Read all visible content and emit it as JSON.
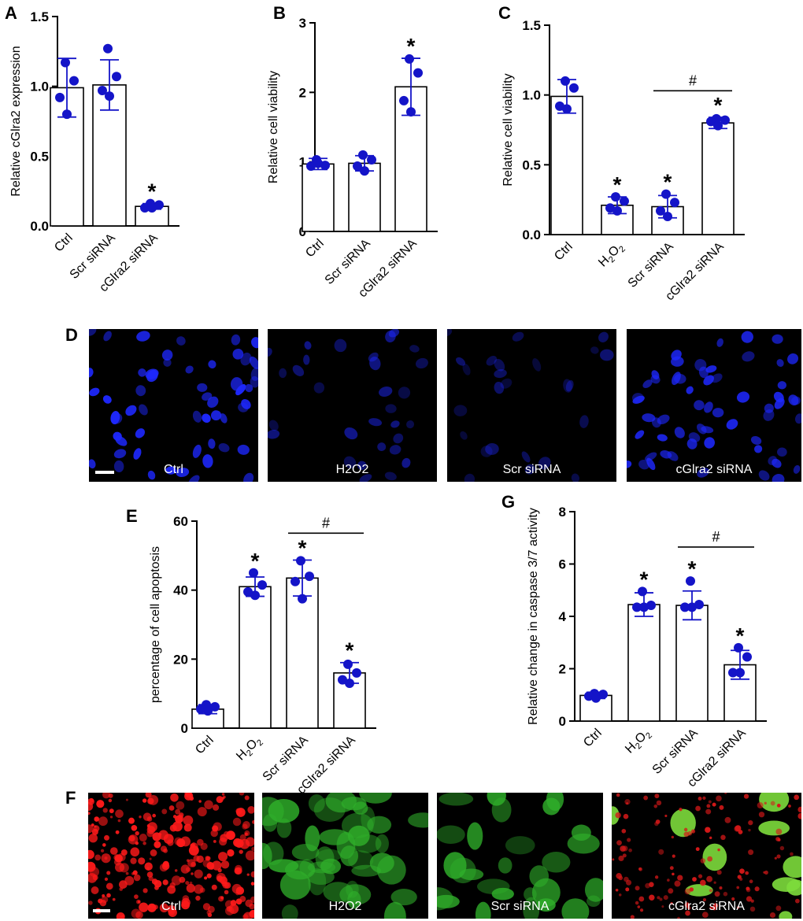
{
  "panel_letters": {
    "A": "A",
    "B": "B",
    "C": "C",
    "D": "D",
    "E": "E",
    "F": "F",
    "G": "G"
  },
  "colors": {
    "dot": "#1414c8",
    "bar": "#000000",
    "error": "#1414c8",
    "dapi": "#1e28ff"
  },
  "panel_d_labels": [
    "Ctrl",
    "H2O2",
    "Scr siRNA",
    "cGlra2 siRNA"
  ],
  "panel_f_labels": [
    "Ctrl",
    "H2O2",
    "Scr siRNA",
    "cGlra2 siRNA"
  ],
  "chart_data": [
    {
      "id": "A",
      "type": "bar",
      "ylabel": "Relative cGlra2 expression",
      "categories": [
        "Ctrl",
        "Scr siRNA",
        "cGlra2 siRNA"
      ],
      "values": [
        0.99,
        1.01,
        0.14
      ],
      "errors": [
        0.21,
        0.18,
        0.02
      ],
      "points": [
        [
          1.17,
          1.04,
          0.92,
          0.8
        ],
        [
          1.27,
          1.07,
          0.97,
          0.93
        ],
        [
          0.16,
          0.15,
          0.13,
          0.13
        ]
      ],
      "significance": [
        "",
        "",
        "*"
      ],
      "ylim": [
        0,
        1.5
      ],
      "yticks": [
        0,
        0.5,
        1.0,
        1.5
      ],
      "ytick_labels": [
        "0.0",
        "0.5",
        "1.0",
        "1.5"
      ],
      "bracket": null,
      "grid": false
    },
    {
      "id": "B",
      "type": "bar",
      "ylabel": "Relative cell viability",
      "categories": [
        "Ctrl",
        "Scr siRNA",
        "cGlra2 siRNA"
      ],
      "values": [
        0.97,
        0.98,
        2.08
      ],
      "errors": [
        0.08,
        0.11,
        0.41
      ],
      "points": [
        [
          1.03,
          0.95,
          0.94,
          0.98
        ],
        [
          1.1,
          1.03,
          0.94,
          0.87
        ],
        [
          2.48,
          2.28,
          1.88,
          1.72
        ]
      ],
      "significance": [
        "",
        "",
        "*"
      ],
      "ylim": [
        0,
        3
      ],
      "yticks": [
        0,
        1,
        2,
        3
      ],
      "ytick_labels": [
        "0",
        "1",
        "2",
        "3"
      ],
      "bracket": null,
      "grid": false
    },
    {
      "id": "C",
      "type": "bar",
      "ylabel": "Relative cell viability",
      "categories": [
        "Ctrl",
        "H2O2",
        "Scr siRNA",
        "cGlra2 siRNA"
      ],
      "values": [
        0.99,
        0.21,
        0.2,
        0.8
      ],
      "errors": [
        0.12,
        0.06,
        0.08,
        0.04
      ],
      "points": [
        [
          1.1,
          1.05,
          0.92,
          0.9
        ],
        [
          0.27,
          0.24,
          0.19,
          0.17
        ],
        [
          0.29,
          0.23,
          0.17,
          0.13
        ],
        [
          0.83,
          0.82,
          0.81,
          0.78
        ]
      ],
      "significance": [
        "",
        "*",
        "*",
        "*"
      ],
      "ylim": [
        0,
        1.5
      ],
      "yticks": [
        0,
        0.5,
        1.0,
        1.5
      ],
      "ytick_labels": [
        "0.0",
        "0.5",
        "1.0",
        "1.5"
      ],
      "bracket": {
        "from": 2,
        "to": 3,
        "value": 1.03,
        "label": "#"
      },
      "grid": false
    },
    {
      "id": "E",
      "type": "bar",
      "ylabel": "percentage of cell apoptosis",
      "categories": [
        "Ctrl",
        "H2O2",
        "Scr siRNA",
        "cGlra2 siRNA"
      ],
      "values": [
        5.5,
        41.0,
        43.5,
        16.0
      ],
      "errors": [
        1.3,
        2.8,
        5.2,
        3.0
      ],
      "points": [
        [
          6.8,
          6.2,
          5.5,
          5.0
        ],
        [
          45.0,
          41.5,
          39.5,
          38.5
        ],
        [
          48.5,
          44.0,
          42.5,
          37.5
        ],
        [
          18.5,
          16.0,
          14.0,
          13.0
        ]
      ],
      "significance": [
        "",
        "*",
        "*",
        "*"
      ],
      "ylim": [
        0,
        60
      ],
      "yticks": [
        0,
        20,
        40,
        60
      ],
      "ytick_labels": [
        "0",
        "20",
        "40",
        "60"
      ],
      "bracket": {
        "from": 2,
        "to": 3,
        "value": 56.5,
        "label": "#"
      },
      "grid": false
    },
    {
      "id": "G",
      "type": "bar",
      "ylabel": "Relative change in caspase 3/7 activity",
      "categories": [
        "Ctrl",
        "H2O2",
        "Scr siRNA",
        "cGlra2 siRNA"
      ],
      "values": [
        0.98,
        4.45,
        4.42,
        2.15
      ],
      "errors": [
        0.12,
        0.45,
        0.55,
        0.55
      ],
      "points": [
        [
          1.05,
          1.02,
          0.95,
          0.88
        ],
        [
          4.95,
          4.42,
          4.35,
          4.35
        ],
        [
          5.35,
          4.45,
          4.35,
          4.35
        ],
        [
          2.8,
          2.45,
          1.85,
          1.85
        ]
      ],
      "significance": [
        "",
        "*",
        "*",
        "*"
      ],
      "ylim": [
        0,
        8
      ],
      "yticks": [
        0,
        2,
        4,
        6,
        8
      ],
      "ytick_labels": [
        "0",
        "2",
        "4",
        "6",
        "8"
      ],
      "bracket": {
        "from": 2,
        "to": 3,
        "value": 6.65,
        "label": "#"
      },
      "grid": false
    }
  ]
}
